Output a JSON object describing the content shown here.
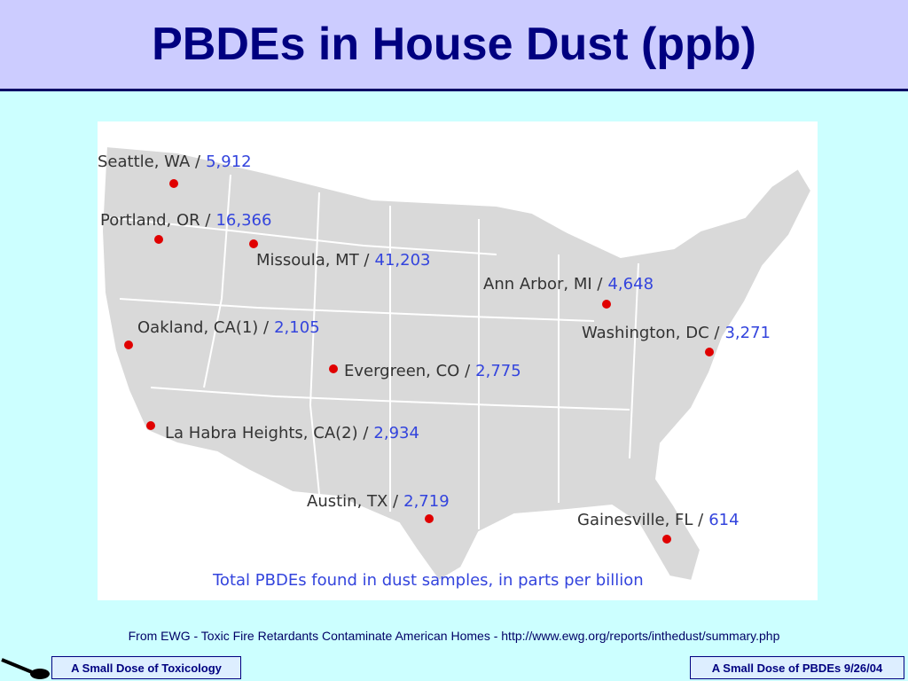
{
  "header": {
    "title": "PBDEs in House Dust (ppb)"
  },
  "map": {
    "caption": "Total PBDEs found in dust samples, in parts per billion",
    "cities": [
      {
        "label": "Seattle, WA /",
        "value": "5,912"
      },
      {
        "label": "Portland, OR /",
        "value": "16,366"
      },
      {
        "label": "Missoula, MT /",
        "value": "41,203"
      },
      {
        "label": "Ann Arbor, MI /",
        "value": "4,648"
      },
      {
        "label": "Oakland, CA(1) /",
        "value": "2,105"
      },
      {
        "label": "Washington, DC /",
        "value": "3,271"
      },
      {
        "label": "Evergreen, CO /",
        "value": "2,775"
      },
      {
        "label": "La Habra Heights, CA(2) /",
        "value": "2,934"
      },
      {
        "label": "Austin, TX /",
        "value": "2,719"
      },
      {
        "label": "Gainesville, FL /",
        "value": "614"
      }
    ]
  },
  "footer": {
    "source": "From EWG - Toxic Fire Retardants Contaminate American Homes - http://www.ewg.org/reports/inthedust/summary.php",
    "left": "A Small Dose of Toxicology",
    "right": "A Small Dose of PBDEs  9/26/04"
  }
}
